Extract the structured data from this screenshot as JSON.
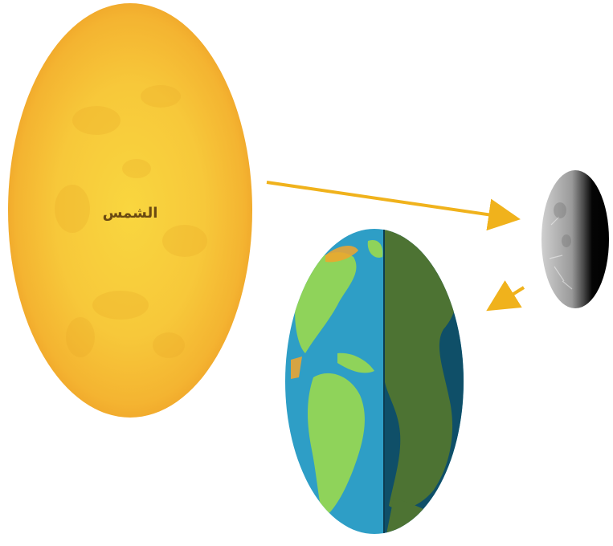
{
  "sun": {
    "label": "الشمس"
  },
  "colors": {
    "sun_outer": "#f2a52b",
    "sun_inner": "#f8cf3c",
    "arrow": "#f0b21c",
    "ocean_lit": "#2e9ec6",
    "land_lit": "#8fd35a",
    "ocean_dark": "#0f4f68",
    "land_dark": "#4d7333",
    "moon_lit": "#b8b8b8",
    "moon_dark": "#0a0a0a"
  },
  "icons": {
    "sun": "sun-icon",
    "earth": "earth-icon",
    "moon": "moon-icon"
  }
}
